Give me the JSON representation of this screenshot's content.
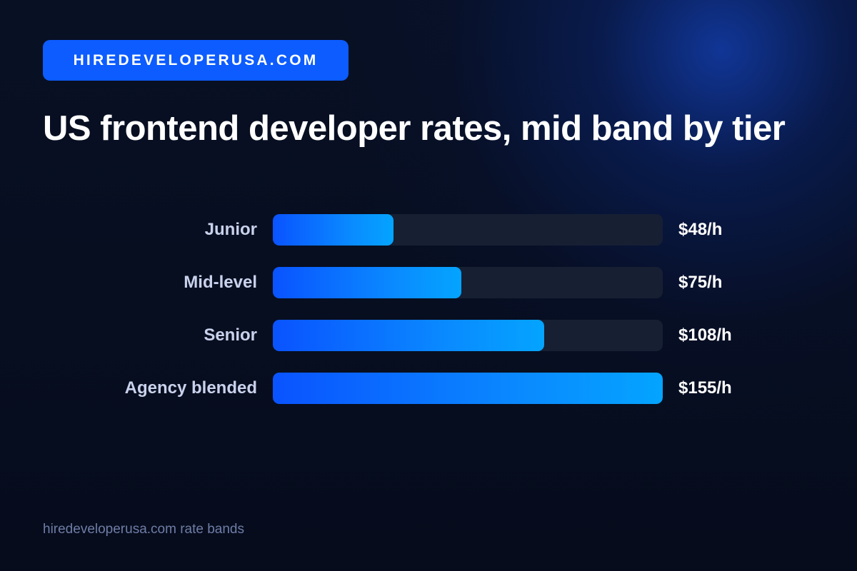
{
  "brand": "HIREDEVELOPERUSA.COM",
  "title": "US frontend developer rates, mid band by tier",
  "footer": "hiredeveloperusa.com rate bands",
  "colors": {
    "background": "#060c1d",
    "accent": "#0c5cff",
    "bar_start": "#0a53ff",
    "bar_end": "#04a4ff",
    "track": "#171f33"
  },
  "chart_data": {
    "type": "bar",
    "orientation": "horizontal",
    "title": "US frontend developer rates, mid band by tier",
    "categories": [
      "Junior",
      "Mid-level",
      "Senior",
      "Agency blended"
    ],
    "values": [
      48,
      75,
      108,
      155
    ],
    "value_labels": [
      "$48/h",
      "$75/h",
      "$108/h",
      "$155/h"
    ],
    "unit": "$/h",
    "xlim": [
      0,
      155
    ],
    "grid": false,
    "legend": "none"
  }
}
